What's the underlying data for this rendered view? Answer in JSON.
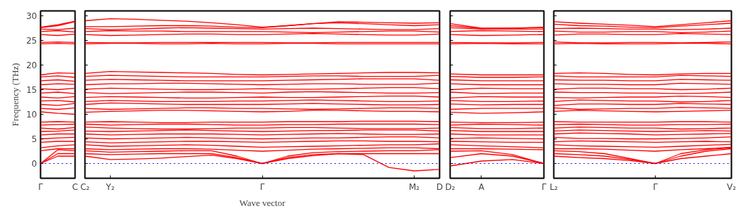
{
  "chart_data": [
    {
      "type": "line",
      "ylabel": "Frequency (THz)",
      "ylim": [
        -3,
        31
      ],
      "yticks": [
        0,
        5,
        10,
        15,
        20,
        25,
        30
      ],
      "line_style": "solid",
      "categories": [
        "Γ",
        null,
        "C"
      ],
      "ref_lines": [
        {
          "axis": "y",
          "value": 0,
          "color": "#0000ff",
          "line_style": "dotted"
        }
      ],
      "series": [
        {
          "color": "#ff0000",
          "values": [
            0,
            1.5,
            1.5
          ]
        },
        {
          "color": "#ff0000",
          "values": [
            0,
            2.0,
            2.0
          ]
        },
        {
          "color": "#ff0000",
          "values": [
            0,
            2.8,
            2.6
          ]
        },
        {
          "color": "#ff0000",
          "values": [
            2.6,
            3.0,
            3.0
          ]
        },
        {
          "color": "#ff0000",
          "values": [
            3.2,
            3.6,
            3.8
          ]
        },
        {
          "color": "#ff0000",
          "values": [
            4.3,
            4.5,
            4.5
          ]
        },
        {
          "color": "#ff0000",
          "values": [
            5.0,
            5.2,
            5.3
          ]
        },
        {
          "color": "#ff0000",
          "values": [
            5.8,
            6.0,
            6.0
          ]
        },
        {
          "color": "#ff0000",
          "values": [
            6.5,
            6.6,
            6.8
          ]
        },
        {
          "color": "#ff0000",
          "values": [
            7.2,
            7.0,
            7.3
          ]
        },
        {
          "color": "#ff0000",
          "values": [
            7.8,
            7.9,
            8.0
          ]
        },
        {
          "color": "#ff0000",
          "values": [
            8.4,
            8.5,
            8.4
          ]
        },
        {
          "color": "#ff0000",
          "values": [
            10.5,
            10.2,
            10.0
          ]
        },
        {
          "color": "#ff0000",
          "values": [
            11.2,
            11.0,
            11.3
          ]
        },
        {
          "color": "#ff0000",
          "values": [
            12.0,
            11.8,
            12.2
          ]
        },
        {
          "color": "#ff0000",
          "values": [
            12.7,
            12.8,
            12.5
          ]
        },
        {
          "color": "#ff0000",
          "values": [
            13.5,
            13.3,
            13.6
          ]
        },
        {
          "color": "#ff0000",
          "values": [
            14.3,
            14.5,
            14.2
          ]
        },
        {
          "color": "#ff0000",
          "values": [
            15.2,
            15.0,
            15.3
          ]
        },
        {
          "color": "#ff0000",
          "values": [
            16.0,
            16.2,
            16.1
          ]
        },
        {
          "color": "#ff0000",
          "values": [
            16.8,
            17.0,
            16.7
          ]
        },
        {
          "color": "#ff0000",
          "values": [
            17.6,
            17.8,
            17.5
          ]
        },
        {
          "color": "#ff0000",
          "values": [
            18.0,
            18.4,
            18.3
          ]
        },
        {
          "color": "#ff0000",
          "values": [
            24.3,
            24.4,
            24.3
          ]
        },
        {
          "color": "#ff0000",
          "values": [
            24.6,
            24.7,
            24.6
          ]
        },
        {
          "color": "#ff0000",
          "values": [
            26.2,
            26.0,
            26.3
          ]
        },
        {
          "color": "#ff0000",
          "values": [
            26.8,
            27.0,
            26.7
          ]
        },
        {
          "color": "#ff0000",
          "values": [
            27.3,
            27.2,
            27.5
          ]
        },
        {
          "color": "#ff0000",
          "values": [
            27.6,
            28.0,
            28.8
          ]
        },
        {
          "color": "#ff0000",
          "values": [
            27.7,
            28.2,
            28.9
          ]
        }
      ]
    },
    {
      "type": "line",
      "xlabel": "Wave vector",
      "ylim": [
        -3,
        31
      ],
      "yticks": [
        0,
        5,
        10,
        15,
        20,
        25,
        30
      ],
      "tick_labels": "x",
      "line_style": "solid",
      "categories": [
        "C₂",
        "Y₂",
        null,
        null,
        null,
        null,
        null,
        "Γ",
        null,
        null,
        null,
        null,
        null,
        "M₂",
        "D"
      ],
      "ref_lines": [
        {
          "axis": "y",
          "value": 0,
          "color": "#0000ff",
          "line_style": "dotted"
        }
      ],
      "series": [
        {
          "color": "#ff0000",
          "values": [
            1.5,
            0.8,
            0.9,
            1.1,
            1.4,
            1.7,
            1.0,
            0,
            1.0,
            1.6,
            2.0,
            1.8,
            -0.8,
            -1.5,
            -1.2
          ]
        },
        {
          "color": "#ff0000",
          "values": [
            2.0,
            1.8,
            1.9,
            2.0,
            2.0,
            2.0,
            1.2,
            0,
            1.2,
            1.8,
            2.0,
            2.0,
            2.0,
            2.0,
            2.0
          ]
        },
        {
          "color": "#ff0000",
          "values": [
            2.6,
            2.3,
            2.4,
            2.5,
            2.6,
            2.6,
            1.5,
            0,
            1.5,
            2.2,
            2.4,
            2.5,
            2.6,
            2.6,
            2.8
          ]
        },
        {
          "color": "#ff0000",
          "values": [
            3.0,
            2.8,
            2.9,
            3.0,
            3.0,
            2.9,
            2.7,
            2.5,
            2.7,
            2.9,
            3.0,
            3.1,
            3.2,
            3.2,
            3.0
          ]
        },
        {
          "color": "#ff0000",
          "values": [
            3.8,
            3.5,
            3.6,
            3.7,
            3.8,
            3.7,
            3.5,
            3.3,
            3.4,
            3.5,
            3.6,
            3.7,
            3.8,
            3.8,
            4.0
          ]
        },
        {
          "color": "#ff0000",
          "values": [
            4.4,
            4.2,
            4.3,
            4.4,
            4.5,
            4.5,
            4.4,
            4.3,
            4.4,
            4.5,
            4.6,
            4.6,
            4.5,
            4.5,
            4.4
          ]
        },
        {
          "color": "#ff0000",
          "values": [
            5.2,
            5.0,
            5.1,
            5.2,
            5.3,
            5.2,
            5.1,
            5.0,
            5.1,
            5.2,
            5.2,
            5.3,
            5.4,
            5.4,
            5.2
          ]
        },
        {
          "color": "#ff0000",
          "values": [
            6.0,
            5.8,
            5.9,
            6.0,
            6.0,
            6.0,
            5.9,
            5.8,
            5.9,
            6.0,
            6.1,
            6.0,
            5.9,
            5.9,
            6.0
          ]
        },
        {
          "color": "#ff0000",
          "values": [
            6.6,
            6.5,
            6.6,
            6.7,
            6.8,
            6.7,
            6.6,
            6.5,
            6.6,
            6.7,
            6.7,
            6.8,
            6.8,
            6.8,
            6.6
          ]
        },
        {
          "color": "#ff0000",
          "values": [
            7.4,
            7.2,
            7.1,
            7.0,
            7.0,
            7.1,
            7.2,
            7.2,
            7.3,
            7.3,
            7.2,
            7.1,
            7.1,
            7.1,
            7.2
          ]
        },
        {
          "color": "#ff0000",
          "values": [
            8.0,
            7.8,
            7.9,
            8.0,
            8.0,
            7.9,
            7.8,
            7.8,
            7.9,
            7.9,
            8.0,
            8.0,
            8.0,
            8.0,
            7.9
          ]
        },
        {
          "color": "#ff0000",
          "values": [
            8.4,
            8.5,
            8.4,
            8.3,
            8.3,
            8.4,
            8.4,
            8.4,
            8.5,
            8.5,
            8.5,
            8.6,
            8.6,
            8.6,
            8.5
          ]
        },
        {
          "color": "#ff0000",
          "values": [
            10.4,
            10.6,
            10.7,
            10.8,
            10.8,
            10.7,
            10.6,
            10.5,
            10.6,
            10.8,
            10.8,
            10.7,
            10.6,
            10.6,
            10.5
          ]
        },
        {
          "color": "#ff0000",
          "values": [
            11.2,
            11.0,
            11.1,
            11.2,
            11.3,
            11.3,
            11.2,
            11.2,
            11.1,
            11.0,
            11.1,
            11.2,
            11.3,
            11.3,
            11.2
          ]
        },
        {
          "color": "#ff0000",
          "values": [
            12.0,
            12.3,
            12.2,
            12.1,
            12.0,
            12.0,
            12.0,
            12.0,
            12.1,
            12.2,
            12.1,
            12.0,
            11.9,
            11.9,
            12.0
          ]
        },
        {
          "color": "#ff0000",
          "values": [
            12.6,
            12.8,
            12.7,
            12.6,
            12.6,
            12.6,
            12.7,
            12.7,
            12.8,
            12.9,
            12.8,
            12.7,
            12.6,
            12.6,
            12.7
          ]
        },
        {
          "color": "#ff0000",
          "values": [
            13.4,
            13.6,
            13.5,
            13.4,
            13.3,
            13.3,
            13.4,
            13.5,
            13.4,
            13.4,
            13.5,
            13.6,
            13.7,
            13.7,
            13.5
          ]
        },
        {
          "color": "#ff0000",
          "values": [
            14.4,
            14.2,
            14.3,
            14.4,
            14.5,
            14.5,
            14.4,
            14.3,
            14.5,
            14.6,
            14.5,
            14.4,
            14.3,
            14.3,
            14.4
          ]
        },
        {
          "color": "#ff0000",
          "values": [
            15.1,
            15.3,
            15.2,
            15.1,
            15.0,
            15.0,
            15.1,
            15.2,
            15.1,
            15.1,
            15.2,
            15.3,
            15.4,
            15.4,
            15.2
          ]
        },
        {
          "color": "#ff0000",
          "values": [
            16.0,
            16.2,
            16.2,
            16.3,
            16.3,
            16.2,
            16.1,
            16.0,
            16.1,
            16.2,
            16.2,
            16.1,
            16.1,
            16.1,
            16.3
          ]
        },
        {
          "color": "#ff0000",
          "values": [
            16.9,
            17.1,
            17.0,
            16.9,
            16.8,
            16.8,
            16.8,
            16.8,
            16.9,
            17.0,
            17.1,
            17.2,
            17.2,
            17.2,
            16.9
          ]
        },
        {
          "color": "#ff0000",
          "values": [
            17.7,
            17.9,
            17.8,
            17.7,
            17.6,
            17.6,
            17.6,
            17.6,
            17.7,
            17.8,
            17.8,
            17.7,
            17.7,
            17.7,
            17.9
          ]
        },
        {
          "color": "#ff0000",
          "values": [
            18.3,
            18.7,
            18.6,
            18.5,
            18.4,
            18.3,
            18.1,
            18.0,
            18.1,
            18.2,
            18.3,
            18.4,
            18.5,
            18.5,
            18.4
          ]
        },
        {
          "color": "#ff0000",
          "values": [
            24.3,
            24.4,
            24.4,
            24.3,
            24.3,
            24.4,
            24.3,
            24.3,
            24.4,
            24.4,
            24.3,
            24.3,
            24.3,
            24.3,
            24.3
          ]
        },
        {
          "color": "#ff0000",
          "values": [
            24.6,
            24.5,
            24.5,
            24.6,
            24.6,
            24.6,
            24.6,
            24.6,
            24.5,
            24.5,
            24.6,
            24.6,
            24.6,
            24.6,
            24.6
          ]
        },
        {
          "color": "#ff0000",
          "values": [
            26.2,
            26.0,
            26.1,
            26.2,
            26.3,
            26.3,
            26.2,
            26.2,
            26.3,
            26.4,
            26.3,
            26.2,
            26.1,
            26.1,
            26.3
          ]
        },
        {
          "color": "#ff0000",
          "values": [
            26.8,
            27.0,
            26.9,
            26.9,
            26.8,
            26.8,
            26.8,
            26.8,
            26.7,
            26.6,
            26.7,
            26.8,
            26.9,
            26.9,
            26.7
          ]
        },
        {
          "color": "#ff0000",
          "values": [
            27.4,
            27.2,
            27.3,
            27.5,
            27.6,
            27.5,
            27.4,
            27.3,
            27.4,
            27.5,
            27.4,
            27.3,
            27.2,
            27.2,
            27.4
          ]
        },
        {
          "color": "#ff0000",
          "values": [
            27.8,
            27.8,
            27.9,
            28.0,
            28.0,
            27.9,
            27.7,
            27.6,
            28.0,
            28.4,
            28.6,
            28.4,
            28.2,
            28.0,
            28.2
          ]
        },
        {
          "color": "#ff0000",
          "values": [
            29.0,
            29.4,
            29.3,
            29.1,
            28.9,
            28.6,
            28.2,
            27.7,
            28.0,
            28.4,
            28.8,
            28.7,
            28.6,
            28.5,
            28.6
          ]
        }
      ]
    },
    {
      "type": "line",
      "ylim": [
        -3,
        31
      ],
      "yticks": [
        0,
        5,
        10,
        15,
        20,
        25,
        30
      ],
      "tick_labels": "x",
      "line_style": "solid",
      "categories": [
        "D₂",
        "A",
        null,
        "Γ"
      ],
      "ref_lines": [
        {
          "axis": "y",
          "value": 0,
          "color": "#0000ff",
          "line_style": "dotted"
        }
      ],
      "series": [
        {
          "color": "#ff0000",
          "values": [
            -0.5,
            0.5,
            0.8,
            0
          ]
        },
        {
          "color": "#ff0000",
          "values": [
            1.2,
            2.0,
            1.5,
            0
          ]
        },
        {
          "color": "#ff0000",
          "values": [
            2.5,
            2.6,
            1.8,
            0
          ]
        },
        {
          "color": "#ff0000",
          "values": [
            3.0,
            3.0,
            2.9,
            2.8
          ]
        },
        {
          "color": "#ff0000",
          "values": [
            3.8,
            3.6,
            3.4,
            3.2
          ]
        },
        {
          "color": "#ff0000",
          "values": [
            4.5,
            4.4,
            4.3,
            4.3
          ]
        },
        {
          "color": "#ff0000",
          "values": [
            5.1,
            5.2,
            5.1,
            5.0
          ]
        },
        {
          "color": "#ff0000",
          "values": [
            6.0,
            5.8,
            5.8,
            5.8
          ]
        },
        {
          "color": "#ff0000",
          "values": [
            6.7,
            6.5,
            6.5,
            6.5
          ]
        },
        {
          "color": "#ff0000",
          "values": [
            7.3,
            7.1,
            7.1,
            7.2
          ]
        },
        {
          "color": "#ff0000",
          "values": [
            7.8,
            8.0,
            7.9,
            7.8
          ]
        },
        {
          "color": "#ff0000",
          "values": [
            8.4,
            8.3,
            8.3,
            8.4
          ]
        },
        {
          "color": "#ff0000",
          "values": [
            10.4,
            10.2,
            10.3,
            10.5
          ]
        },
        {
          "color": "#ff0000",
          "values": [
            11.0,
            11.2,
            11.2,
            11.2
          ]
        },
        {
          "color": "#ff0000",
          "values": [
            12.1,
            11.9,
            12.0,
            12.0
          ]
        },
        {
          "color": "#ff0000",
          "values": [
            12.8,
            12.6,
            12.6,
            12.7
          ]
        },
        {
          "color": "#ff0000",
          "values": [
            13.3,
            13.6,
            13.5,
            13.5
          ]
        },
        {
          "color": "#ff0000",
          "values": [
            14.5,
            14.2,
            14.3,
            14.3
          ]
        },
        {
          "color": "#ff0000",
          "values": [
            15.0,
            15.3,
            15.2,
            15.2
          ]
        },
        {
          "color": "#ff0000",
          "values": [
            16.2,
            16.0,
            16.0,
            16.0
          ]
        },
        {
          "color": "#ff0000",
          "values": [
            17.0,
            16.8,
            16.8,
            16.8
          ]
        },
        {
          "color": "#ff0000",
          "values": [
            17.7,
            17.5,
            17.5,
            17.6
          ]
        },
        {
          "color": "#ff0000",
          "values": [
            18.2,
            18.0,
            18.0,
            18.0
          ]
        },
        {
          "color": "#ff0000",
          "values": [
            24.3,
            24.4,
            24.3,
            24.3
          ]
        },
        {
          "color": "#ff0000",
          "values": [
            24.6,
            24.5,
            24.5,
            24.6
          ]
        },
        {
          "color": "#ff0000",
          "values": [
            26.2,
            26.0,
            26.1,
            26.2
          ]
        },
        {
          "color": "#ff0000",
          "values": [
            26.8,
            27.0,
            26.9,
            26.8
          ]
        },
        {
          "color": "#ff0000",
          "values": [
            27.6,
            27.3,
            27.3,
            27.3
          ]
        },
        {
          "color": "#ff0000",
          "values": [
            28.4,
            27.5,
            27.5,
            27.6
          ]
        },
        {
          "color": "#ff0000",
          "values": [
            28.0,
            27.4,
            27.5,
            27.7
          ]
        }
      ]
    },
    {
      "type": "line",
      "ylim": [
        -3,
        31
      ],
      "yticks": [
        0,
        5,
        10,
        15,
        20,
        25,
        30
      ],
      "tick_labels": "x",
      "line_style": "solid",
      "categories": [
        "L₂",
        null,
        null,
        null,
        "Γ",
        null,
        null,
        "V₂"
      ],
      "ref_lines": [
        {
          "axis": "y",
          "value": 0,
          "color": "#0000ff",
          "line_style": "dotted"
        }
      ],
      "series": [
        {
          "color": "#ff0000",
          "values": [
            1.5,
            1.2,
            1.0,
            0.6,
            0,
            1.0,
            1.5,
            2.0
          ]
        },
        {
          "color": "#ff0000",
          "values": [
            2.0,
            1.8,
            1.5,
            0.8,
            0,
            1.5,
            2.5,
            3.0
          ]
        },
        {
          "color": "#ff0000",
          "values": [
            2.6,
            2.4,
            2.0,
            1.0,
            0,
            2.0,
            2.8,
            3.2
          ]
        },
        {
          "color": "#ff0000",
          "values": [
            3.0,
            3.0,
            2.9,
            2.7,
            2.5,
            2.8,
            3.0,
            3.3
          ]
        },
        {
          "color": "#ff0000",
          "values": [
            3.8,
            3.6,
            3.5,
            3.4,
            3.3,
            3.5,
            3.7,
            3.9
          ]
        },
        {
          "color": "#ff0000",
          "values": [
            4.4,
            4.6,
            4.5,
            4.4,
            4.3,
            4.4,
            4.5,
            4.4
          ]
        },
        {
          "color": "#ff0000",
          "values": [
            5.3,
            5.1,
            5.1,
            5.0,
            5.0,
            5.1,
            5.2,
            5.4
          ]
        },
        {
          "color": "#ff0000",
          "values": [
            6.0,
            6.2,
            6.1,
            6.0,
            5.8,
            5.9,
            6.0,
            6.1
          ]
        },
        {
          "color": "#ff0000",
          "values": [
            6.6,
            6.8,
            6.7,
            6.6,
            6.5,
            6.6,
            6.7,
            6.6
          ]
        },
        {
          "color": "#ff0000",
          "values": [
            7.2,
            7.4,
            7.3,
            7.2,
            7.2,
            7.0,
            7.1,
            7.2
          ]
        },
        {
          "color": "#ff0000",
          "values": [
            7.9,
            8.0,
            7.9,
            7.8,
            7.8,
            7.9,
            7.9,
            8.0
          ]
        },
        {
          "color": "#ff0000",
          "values": [
            8.5,
            8.4,
            8.4,
            8.4,
            8.4,
            8.5,
            8.5,
            8.4
          ]
        },
        {
          "color": "#ff0000",
          "values": [
            10.6,
            10.8,
            10.7,
            10.6,
            10.5,
            10.6,
            10.7,
            10.8
          ]
        },
        {
          "color": "#ff0000",
          "values": [
            11.3,
            11.0,
            11.1,
            11.2,
            11.2,
            11.4,
            11.3,
            11.2
          ]
        },
        {
          "color": "#ff0000",
          "values": [
            11.8,
            12.1,
            12.1,
            12.0,
            12.0,
            12.2,
            12.1,
            12.0
          ]
        },
        {
          "color": "#ff0000",
          "values": [
            12.6,
            12.9,
            12.8,
            12.7,
            12.7,
            12.5,
            12.6,
            12.8
          ]
        },
        {
          "color": "#ff0000",
          "values": [
            13.4,
            13.3,
            13.4,
            13.5,
            13.5,
            13.7,
            13.6,
            13.4
          ]
        },
        {
          "color": "#ff0000",
          "values": [
            14.5,
            14.4,
            14.4,
            14.3,
            14.3,
            14.2,
            14.3,
            14.5
          ]
        },
        {
          "color": "#ff0000",
          "values": [
            15.1,
            15.3,
            15.3,
            15.2,
            15.2,
            15.0,
            15.1,
            15.3
          ]
        },
        {
          "color": "#ff0000",
          "values": [
            16.2,
            16.1,
            16.1,
            16.0,
            16.0,
            16.3,
            16.2,
            16.1
          ]
        },
        {
          "color": "#ff0000",
          "values": [
            17.0,
            16.9,
            16.9,
            16.8,
            16.8,
            17.1,
            17.0,
            16.9
          ]
        },
        {
          "color": "#ff0000",
          "values": [
            17.8,
            17.6,
            17.6,
            17.6,
            17.6,
            17.9,
            17.8,
            17.7
          ]
        },
        {
          "color": "#ff0000",
          "values": [
            18.3,
            18.4,
            18.3,
            18.1,
            18.0,
            18.2,
            18.3,
            18.3
          ]
        },
        {
          "color": "#ff0000",
          "values": [
            24.3,
            24.4,
            24.3,
            24.3,
            24.3,
            24.4,
            24.4,
            24.3
          ]
        },
        {
          "color": "#ff0000",
          "values": [
            24.7,
            24.5,
            24.5,
            24.6,
            24.6,
            24.5,
            24.6,
            24.7
          ]
        },
        {
          "color": "#ff0000",
          "values": [
            26.1,
            26.3,
            26.3,
            26.2,
            26.2,
            26.4,
            26.3,
            26.2
          ]
        },
        {
          "color": "#ff0000",
          "values": [
            26.9,
            26.7,
            26.7,
            26.8,
            26.8,
            26.6,
            26.7,
            26.9
          ]
        },
        {
          "color": "#ff0000",
          "values": [
            27.4,
            27.5,
            27.4,
            27.3,
            27.3,
            27.2,
            27.3,
            27.5
          ]
        },
        {
          "color": "#ff0000",
          "values": [
            28.3,
            28.0,
            27.9,
            27.7,
            27.6,
            27.9,
            28.2,
            28.5
          ]
        },
        {
          "color": "#ff0000",
          "values": [
            28.8,
            28.5,
            28.3,
            28.1,
            27.8,
            28.2,
            28.6,
            29.0
          ]
        }
      ]
    }
  ]
}
